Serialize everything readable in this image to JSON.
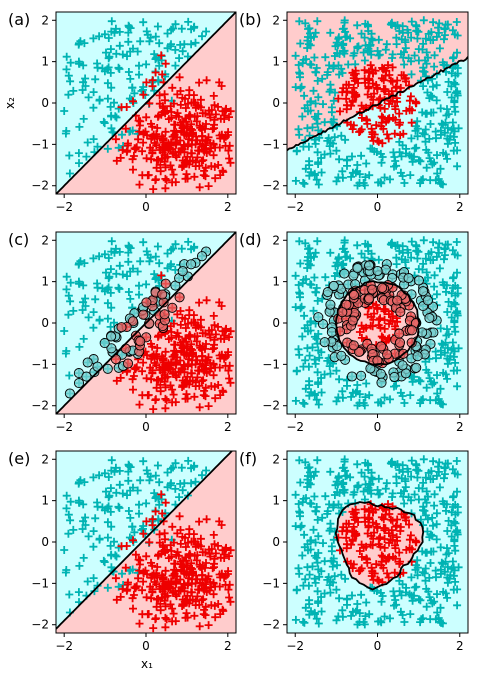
{
  "figure": {
    "x_axis_label": "x₁",
    "y_axis_label": "x₂"
  },
  "style": {
    "class_a_color": "#00b3b3",
    "class_b_color": "#ee0000",
    "region_a_fill": "#ccffff",
    "region_b_fill": "#ffcccc",
    "boundary_color": "#000000",
    "support_vector_outline": "#000000"
  },
  "chart_data": [
    {
      "type": "scatter",
      "panel": "(a)",
      "xlim": [
        -2.2,
        2.2
      ],
      "ylim": [
        -2.2,
        2.2
      ],
      "xticks": [
        -2,
        0,
        2
      ],
      "yticks": [
        -2,
        -1,
        0,
        1,
        2
      ],
      "grid": false,
      "series": [
        {
          "marker": "+",
          "color": "#00b3b3",
          "points": "uniform in square, x2 > x1 (+noise)"
        },
        {
          "marker": "+",
          "color": "#ee0000",
          "points": "gaussian centered (0.9,-0.9) region, x2 < x1"
        }
      ],
      "decision_boundary": {
        "shape": "line",
        "equation": "x2 = x1"
      },
      "regions": {
        "above_boundary": "class_a",
        "below_boundary": "class_b"
      }
    },
    {
      "type": "scatter",
      "panel": "(b)",
      "xlim": [
        -2.2,
        2.2
      ],
      "ylim": [
        -2.2,
        2.2
      ],
      "xticks": [
        -2,
        0,
        2
      ],
      "yticks": [
        -2,
        -1,
        0,
        1,
        2
      ],
      "grid": false,
      "series": [
        {
          "marker": "+",
          "color": "#00b3b3",
          "points": "uniform in square outside red disc"
        },
        {
          "marker": "+",
          "color": "#ee0000",
          "points": "inside disc center (0,0) radius 1"
        }
      ],
      "decision_boundary": {
        "shape": "jagged line",
        "from": [
          -2.2,
          -1.15
        ],
        "to": [
          2.2,
          1.1
        ]
      },
      "regions": {
        "above_boundary": "class_b",
        "below_boundary": "class_a"
      }
    },
    {
      "type": "scatter",
      "panel": "(c)",
      "xlim": [
        -2.2,
        2.2
      ],
      "ylim": [
        -2.2,
        2.2
      ],
      "xticks": [
        -2,
        0,
        2
      ],
      "yticks": [
        -2,
        -1,
        0,
        1,
        2
      ],
      "grid": false,
      "series": [
        {
          "marker": "+",
          "color": "#00b3b3",
          "points": "same as (a)"
        },
        {
          "marker": "+",
          "color": "#ee0000",
          "points": "same as (a)"
        },
        {
          "marker": "circle",
          "color": "#000000",
          "points": "support vectors near boundary"
        }
      ],
      "decision_boundary": {
        "shape": "line",
        "equation": "x2 = x1 (kinked at ends)"
      },
      "regions": {
        "above_boundary": "class_a",
        "below_boundary": "class_b"
      }
    },
    {
      "type": "scatter",
      "panel": "(d)",
      "xlim": [
        -2.2,
        2.2
      ],
      "ylim": [
        -2.2,
        2.2
      ],
      "xticks": [
        -2,
        0,
        2
      ],
      "yticks": [
        -2,
        -1,
        0,
        1,
        2
      ],
      "grid": false,
      "series": [
        {
          "marker": "+",
          "color": "#00b3b3",
          "points": "same as (b)"
        },
        {
          "marker": "+",
          "color": "#ee0000",
          "points": "same as (b)"
        },
        {
          "marker": "circle",
          "color": "#000000",
          "points": "support vectors on ring r≈1"
        }
      ],
      "decision_boundary": {
        "shape": "circle",
        "center": [
          0,
          0
        ],
        "radius": 1.0
      },
      "regions": {
        "inside": "class_b",
        "outside": "class_a"
      }
    },
    {
      "type": "scatter",
      "panel": "(e)",
      "xlim": [
        -2.2,
        2.2
      ],
      "ylim": [
        -2.2,
        2.2
      ],
      "xticks": [
        -2,
        0,
        2
      ],
      "yticks": [
        -2,
        -1,
        0,
        1,
        2
      ],
      "grid": false,
      "series": [
        {
          "marker": "+",
          "color": "#00b3b3",
          "points": "same as (a)"
        },
        {
          "marker": "+",
          "color": "#ee0000",
          "points": "same as (a)"
        }
      ],
      "decision_boundary": {
        "shape": "line",
        "equation": "x2 = x1 + 0.1"
      },
      "regions": {
        "above_boundary": "class_a",
        "below_boundary": "class_b"
      }
    },
    {
      "type": "scatter",
      "panel": "(f)",
      "xlim": [
        -2.2,
        2.2
      ],
      "ylim": [
        -2.2,
        2.2
      ],
      "xticks": [
        -2,
        0,
        2
      ],
      "yticks": [
        -2,
        -1,
        0,
        1,
        2
      ],
      "grid": false,
      "series": [
        {
          "marker": "+",
          "color": "#00b3b3",
          "points": "same as (b)"
        },
        {
          "marker": "+",
          "color": "#ee0000",
          "points": "same as (b)"
        }
      ],
      "decision_boundary": {
        "shape": "blob",
        "center": [
          0,
          0
        ],
        "radius": 1.0
      },
      "regions": {
        "inside": "class_b",
        "outside": "class_a"
      }
    }
  ]
}
